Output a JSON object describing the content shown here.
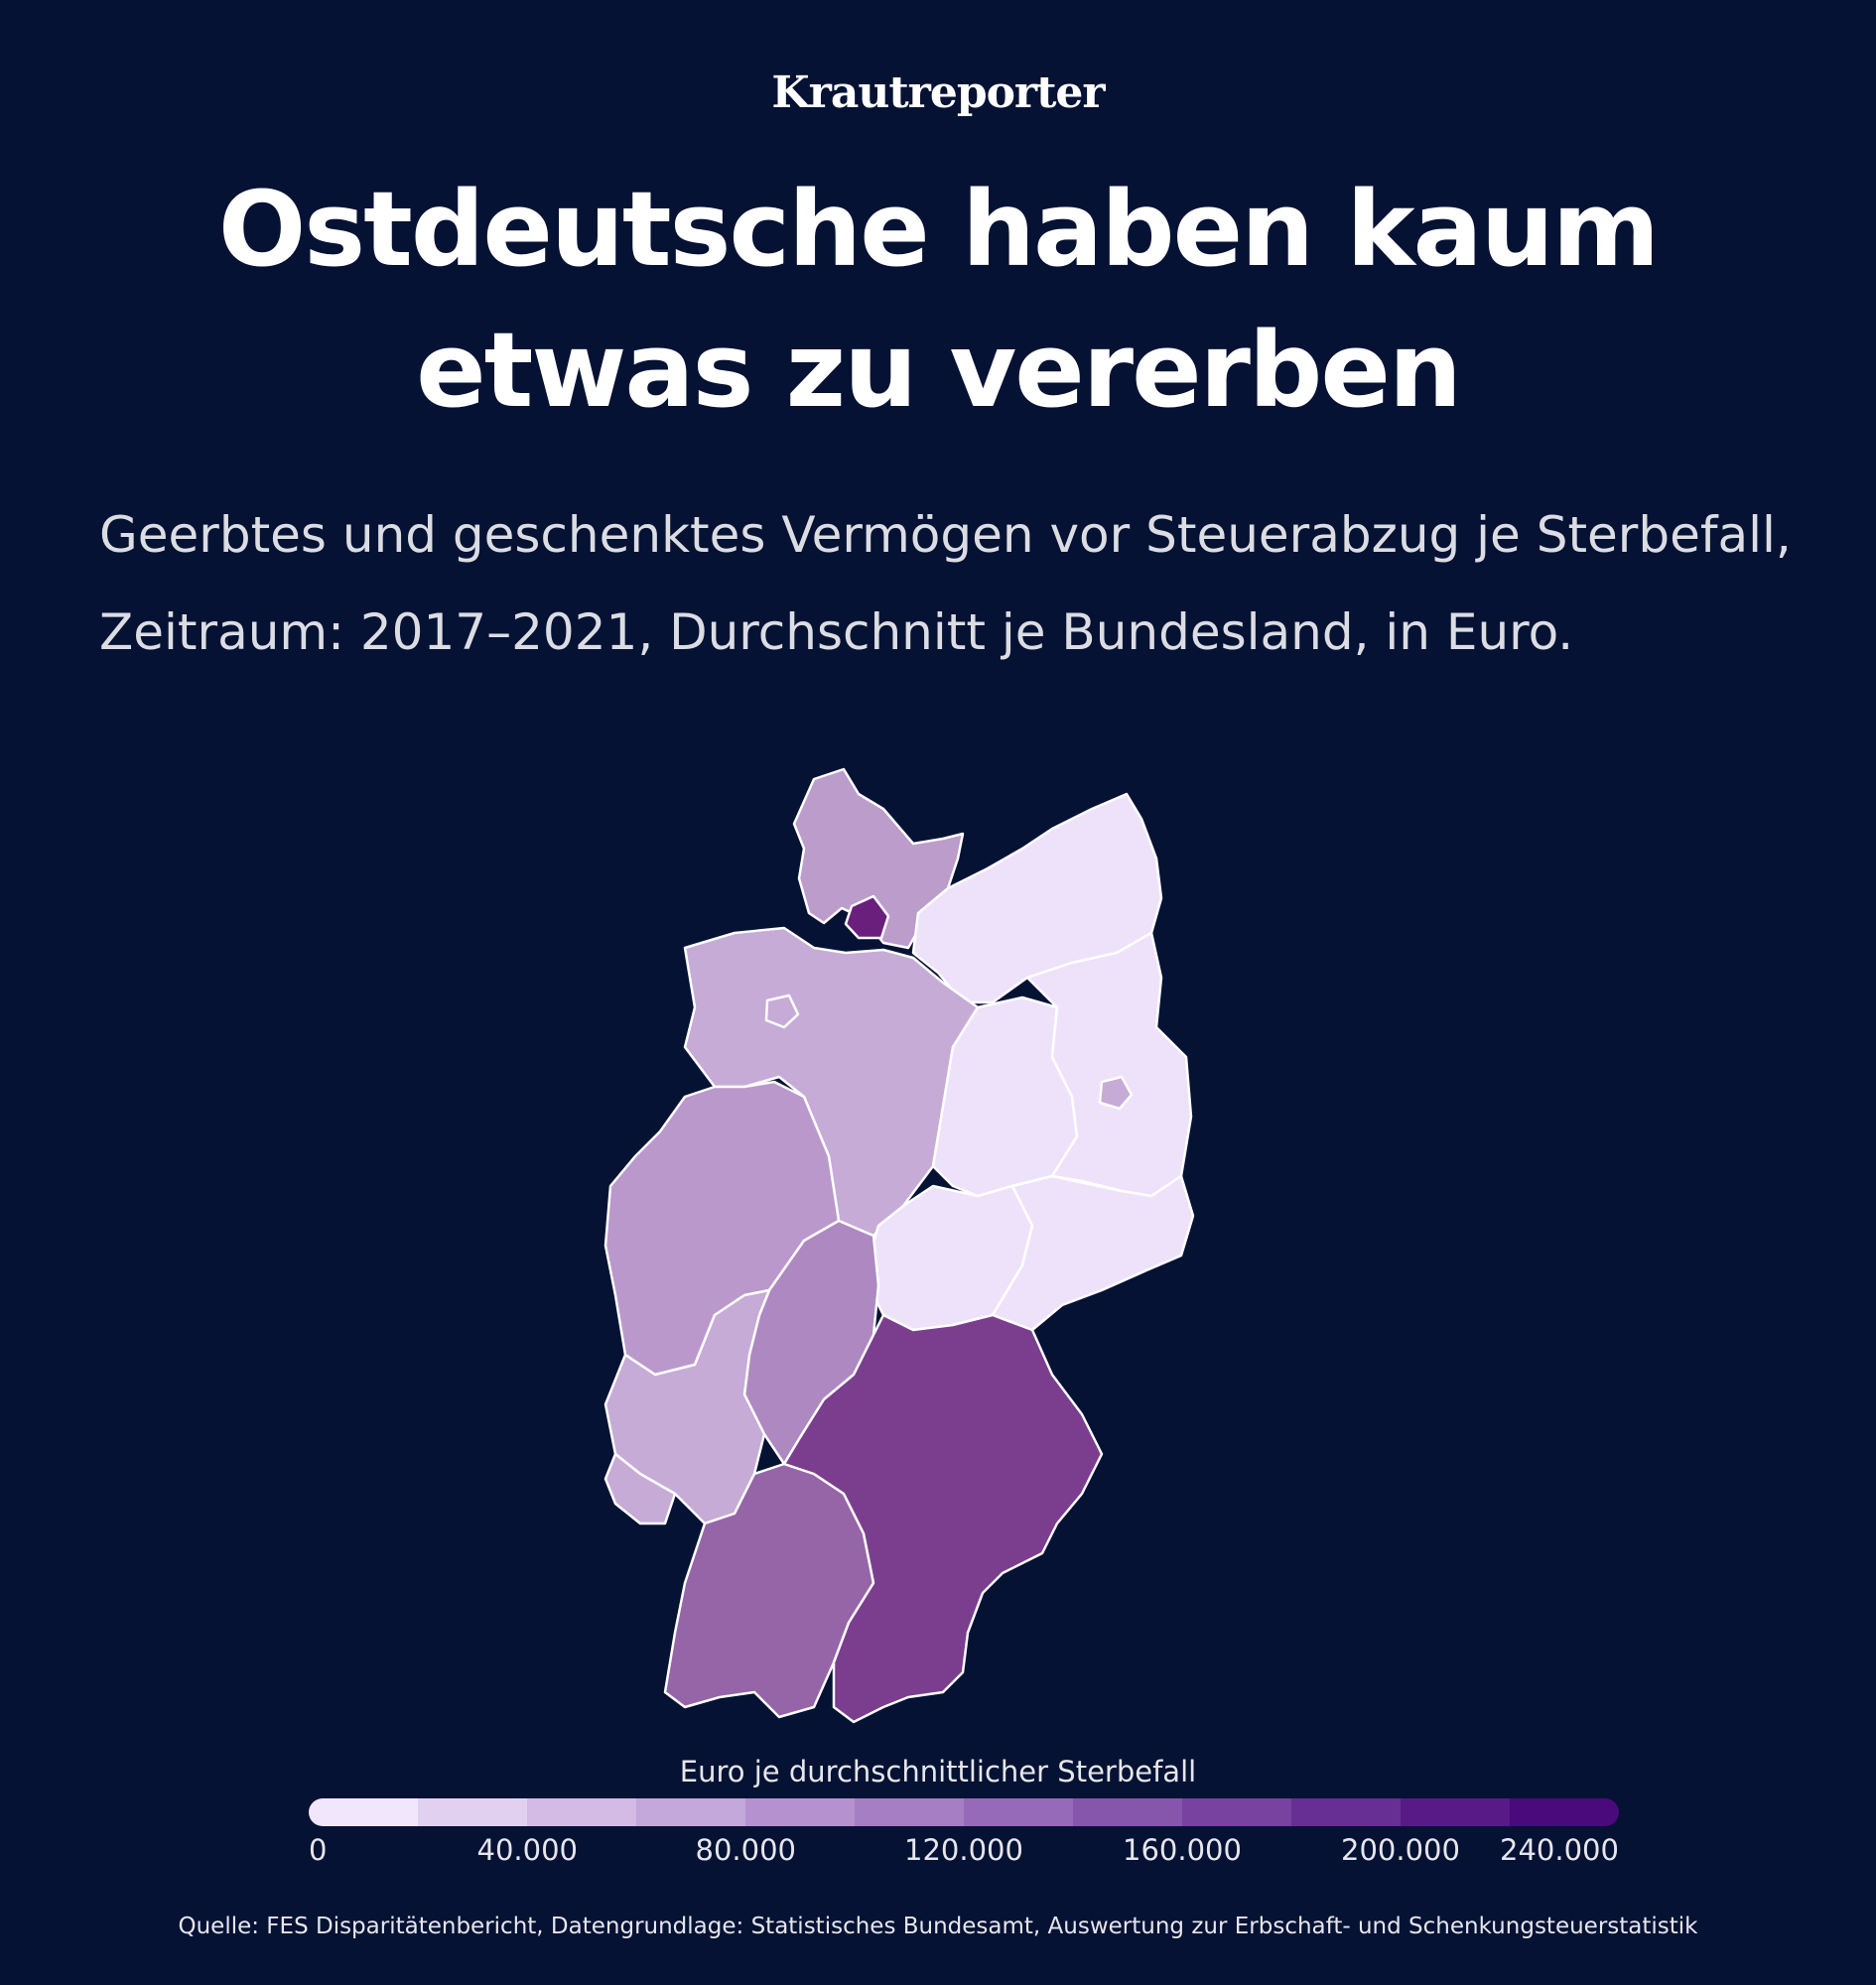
{
  "brand": "Krautreporter",
  "title_line1": "Ostdeutsche haben kaum",
  "title_line2": "etwas zu vererben",
  "subtitle_line1": "Geerbtes und geschenktes Vermögen vor Steuerabzug je Sterbefall,",
  "subtitle_line2": "Zeitraum: 2017–2021, Durchschnitt je Bundesland, in Euro.",
  "legend": {
    "title": "Euro je durchschnittlicher Sterbefall",
    "ticks": [
      "0",
      "40.000",
      "80.000",
      "120.000",
      "160.000",
      "200.000",
      "240.000"
    ],
    "tick_values": [
      0,
      40000,
      80000,
      120000,
      160000,
      200000,
      240000
    ],
    "range": [
      0,
      240000
    ],
    "colors": [
      "#f1e6fb",
      "#e2d0f1",
      "#d3bbe6",
      "#c4a7db",
      "#b592cf",
      "#a57ec4",
      "#966ab8",
      "#8656ac",
      "#7742a0",
      "#672e93",
      "#581a87",
      "#4a0a7c"
    ]
  },
  "regions": [
    {
      "name": "Schleswig-Holstein",
      "color": "#bc9ccb"
    },
    {
      "name": "Hamburg",
      "color": "#6a1f7c"
    },
    {
      "name": "Mecklenburg-Vorpommern",
      "color": "#eee2fa"
    },
    {
      "name": "Niedersachsen",
      "color": "#c6abd6"
    },
    {
      "name": "Bremen",
      "color": "#c6abd6"
    },
    {
      "name": "Sachsen-Anhalt",
      "color": "#eee2fa"
    },
    {
      "name": "Brandenburg",
      "color": "#eee2fa"
    },
    {
      "name": "Berlin",
      "color": "#c6abd6"
    },
    {
      "name": "Nordrhein-Westfalen",
      "color": "#ba98cb"
    },
    {
      "name": "Thüringen",
      "color": "#eee2fa"
    },
    {
      "name": "Sachsen",
      "color": "#eee2fa"
    },
    {
      "name": "Hessen",
      "color": "#ad88c1"
    },
    {
      "name": "Rheinland-Pfalz",
      "color": "#c6abd6"
    },
    {
      "name": "Saarland",
      "color": "#c6abd6"
    },
    {
      "name": "Baden-Württemberg",
      "color": "#9565a8"
    },
    {
      "name": "Bayern",
      "color": "#7b3e8e"
    }
  ],
  "source": "Quelle: FES Disparitätenbericht, Datengrundlage: Statistisches Bundesamt, Auswertung zur Erbschaft- und Schenkungsteuerstatistik"
}
